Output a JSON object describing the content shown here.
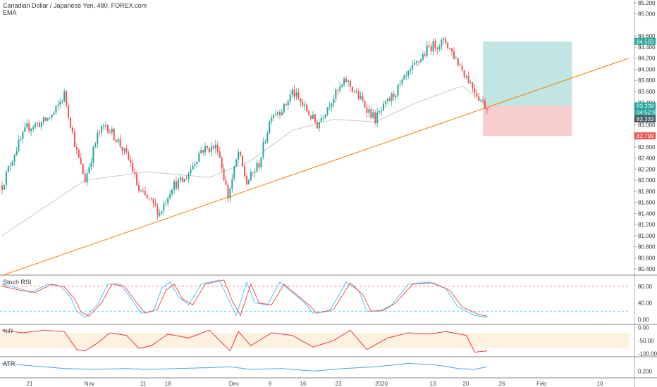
{
  "legend": {
    "title": "Canadian Dollar / Japanese Yen, 480, FOREX.com",
    "indicator": "EMA"
  },
  "colors": {
    "up": "#26a69a",
    "down": "#ef5350",
    "trendline": "#f57c00",
    "ema": "#c8c8c8",
    "profit_zone": "#b2dfdb",
    "loss_zone": "#f8c5c5",
    "stoch_k": "#4fc3f7",
    "stoch_d": "#ef5350",
    "williams": "#e53935",
    "atr": "#4fa3d7",
    "price_tag": "#26a69a",
    "loss_tag": "#ef5350",
    "last_tag": "#455a64"
  },
  "chart_data": [
    {
      "type": "candlestick",
      "name": "main",
      "ylim": [
        80.3,
        85.25
      ],
      "y_ticks": [
        "85.200",
        "85.000",
        "84.600",
        "84.400",
        "84.200",
        "84.000",
        "83.800",
        "83.600",
        "83.400",
        "83.000",
        "82.600",
        "82.400",
        "82.200",
        "82.000",
        "81.800",
        "81.600",
        "81.400",
        "81.200",
        "81.000",
        "80.800",
        "80.600",
        "80.400"
      ],
      "x_ticks": [
        "21",
        "Nov",
        "11",
        "18",
        "Dec",
        "9",
        "16",
        "23",
        "2020",
        "13",
        "20",
        "26",
        "Feb",
        "10"
      ],
      "waypoints": [
        [
          0,
          81.9
        ],
        [
          6,
          82.5
        ],
        [
          12,
          82.95
        ],
        [
          20,
          83.05
        ],
        [
          25,
          83.2
        ],
        [
          30,
          83.55
        ],
        [
          36,
          82.5
        ],
        [
          40,
          82.0
        ],
        [
          46,
          82.8
        ],
        [
          50,
          83.0
        ],
        [
          56,
          82.7
        ],
        [
          62,
          82.3
        ],
        [
          66,
          81.8
        ],
        [
          72,
          81.6
        ],
        [
          76,
          81.4
        ],
        [
          82,
          81.9
        ],
        [
          88,
          82.0
        ],
        [
          96,
          82.55
        ],
        [
          104,
          82.6
        ],
        [
          109,
          81.7
        ],
        [
          114,
          82.5
        ],
        [
          118,
          81.95
        ],
        [
          124,
          82.3
        ],
        [
          130,
          83.2
        ],
        [
          136,
          83.3
        ],
        [
          140,
          83.6
        ],
        [
          146,
          83.3
        ],
        [
          152,
          83.0
        ],
        [
          158,
          83.4
        ],
        [
          166,
          83.8
        ],
        [
          172,
          83.5
        ],
        [
          180,
          83.1
        ],
        [
          186,
          83.4
        ],
        [
          192,
          83.7
        ],
        [
          198,
          84.0
        ],
        [
          206,
          84.4
        ],
        [
          214,
          84.5
        ],
        [
          222,
          84.0
        ],
        [
          230,
          83.5
        ],
        [
          234,
          83.3
        ]
      ],
      "ema": [
        [
          0,
          81.0
        ],
        [
          40,
          82.0
        ],
        [
          70,
          82.15
        ],
        [
          100,
          82.05
        ],
        [
          120,
          82.35
        ],
        [
          140,
          82.9
        ],
        [
          160,
          83.1
        ],
        [
          180,
          83.05
        ],
        [
          200,
          83.4
        ],
        [
          222,
          83.7
        ],
        [
          234,
          83.35
        ]
      ],
      "trendline": [
        [
          0,
          80.28
        ],
        [
          252,
          84.2
        ]
      ],
      "position": {
        "entry": 83.339,
        "target": 84.503,
        "stop": 82.799,
        "start_bar": 232,
        "end_bar": 275
      },
      "price_labels": {
        "target": "84.503",
        "entry": "83.339",
        "countdown": "04:52:05",
        "last": "83.333",
        "stop": "82.799"
      }
    },
    {
      "type": "line",
      "name": "stoch-rsi",
      "title": "Stoch RSI",
      "ylim": [
        -10,
        105
      ],
      "levels": [
        80,
        20
      ],
      "y_ticks": [
        "80.00",
        "40.00",
        "0.00"
      ],
      "series_k": [
        [
          0,
          85
        ],
        [
          8,
          75
        ],
        [
          14,
          65
        ],
        [
          22,
          85
        ],
        [
          28,
          80
        ],
        [
          33,
          55
        ],
        [
          36,
          20
        ],
        [
          40,
          5
        ],
        [
          46,
          35
        ],
        [
          51,
          85
        ],
        [
          57,
          85
        ],
        [
          63,
          45
        ],
        [
          67,
          15
        ],
        [
          73,
          20
        ],
        [
          77,
          75
        ],
        [
          81,
          90
        ],
        [
          85,
          55
        ],
        [
          90,
          35
        ],
        [
          96,
          85
        ],
        [
          105,
          95
        ],
        [
          109,
          50
        ],
        [
          113,
          10
        ],
        [
          118,
          90
        ],
        [
          122,
          40
        ],
        [
          128,
          35
        ],
        [
          134,
          90
        ],
        [
          140,
          65
        ],
        [
          146,
          40
        ],
        [
          150,
          15
        ],
        [
          158,
          20
        ],
        [
          166,
          90
        ],
        [
          172,
          70
        ],
        [
          176,
          20
        ],
        [
          182,
          20
        ],
        [
          188,
          35
        ],
        [
          196,
          85
        ],
        [
          206,
          90
        ],
        [
          214,
          75
        ],
        [
          220,
          30
        ],
        [
          228,
          10
        ],
        [
          234,
          5
        ]
      ],
      "series_d": [
        [
          0,
          80
        ],
        [
          9,
          70
        ],
        [
          16,
          65
        ],
        [
          24,
          85
        ],
        [
          30,
          78
        ],
        [
          35,
          50
        ],
        [
          38,
          18
        ],
        [
          42,
          8
        ],
        [
          48,
          40
        ],
        [
          53,
          85
        ],
        [
          59,
          80
        ],
        [
          65,
          40
        ],
        [
          69,
          15
        ],
        [
          75,
          25
        ],
        [
          79,
          70
        ],
        [
          83,
          85
        ],
        [
          87,
          50
        ],
        [
          92,
          35
        ],
        [
          98,
          85
        ],
        [
          107,
          95
        ],
        [
          111,
          45
        ],
        [
          115,
          10
        ],
        [
          120,
          85
        ],
        [
          124,
          40
        ],
        [
          130,
          35
        ],
        [
          136,
          85
        ],
        [
          142,
          60
        ],
        [
          148,
          35
        ],
        [
          152,
          15
        ],
        [
          160,
          25
        ],
        [
          168,
          88
        ],
        [
          174,
          60
        ],
        [
          178,
          20
        ],
        [
          184,
          22
        ],
        [
          190,
          40
        ],
        [
          198,
          85
        ],
        [
          208,
          88
        ],
        [
          216,
          70
        ],
        [
          222,
          30
        ],
        [
          230,
          12
        ],
        [
          234,
          8
        ]
      ]
    },
    {
      "type": "line",
      "name": "williams-r",
      "title": "%R",
      "ylim": [
        -110,
        10
      ],
      "levels": [
        -20,
        -80
      ],
      "y_ticks": [
        "0.00",
        "-50.00",
        "-100.00"
      ],
      "series": [
        [
          0,
          -10
        ],
        [
          10,
          -20
        ],
        [
          20,
          -10
        ],
        [
          30,
          -15
        ],
        [
          36,
          -85
        ],
        [
          40,
          -90
        ],
        [
          46,
          -60
        ],
        [
          52,
          -20
        ],
        [
          60,
          -30
        ],
        [
          66,
          -80
        ],
        [
          72,
          -70
        ],
        [
          80,
          -25
        ],
        [
          90,
          -40
        ],
        [
          100,
          -10
        ],
        [
          110,
          -90
        ],
        [
          114,
          -15
        ],
        [
          120,
          -70
        ],
        [
          130,
          -20
        ],
        [
          140,
          -30
        ],
        [
          150,
          -75
        ],
        [
          160,
          -50
        ],
        [
          168,
          -10
        ],
        [
          176,
          -85
        ],
        [
          186,
          -40
        ],
        [
          196,
          -20
        ],
        [
          206,
          -25
        ],
        [
          214,
          -15
        ],
        [
          224,
          -30
        ],
        [
          228,
          -95
        ],
        [
          234,
          -90
        ]
      ]
    },
    {
      "type": "line",
      "name": "atr",
      "title": "ATR",
      "ylim": [
        0.12,
        0.36
      ],
      "y_ticks": [
        "0.200"
      ],
      "series": [
        [
          0,
          0.29
        ],
        [
          15,
          0.26
        ],
        [
          30,
          0.23
        ],
        [
          45,
          0.22
        ],
        [
          60,
          0.23
        ],
        [
          70,
          0.22
        ],
        [
          85,
          0.23
        ],
        [
          100,
          0.24
        ],
        [
          110,
          0.25
        ],
        [
          120,
          0.22
        ],
        [
          135,
          0.23
        ],
        [
          150,
          0.2
        ],
        [
          165,
          0.23
        ],
        [
          180,
          0.25
        ],
        [
          196,
          0.29
        ],
        [
          210,
          0.27
        ],
        [
          220,
          0.23
        ],
        [
          228,
          0.22
        ],
        [
          234,
          0.25
        ]
      ]
    }
  ]
}
